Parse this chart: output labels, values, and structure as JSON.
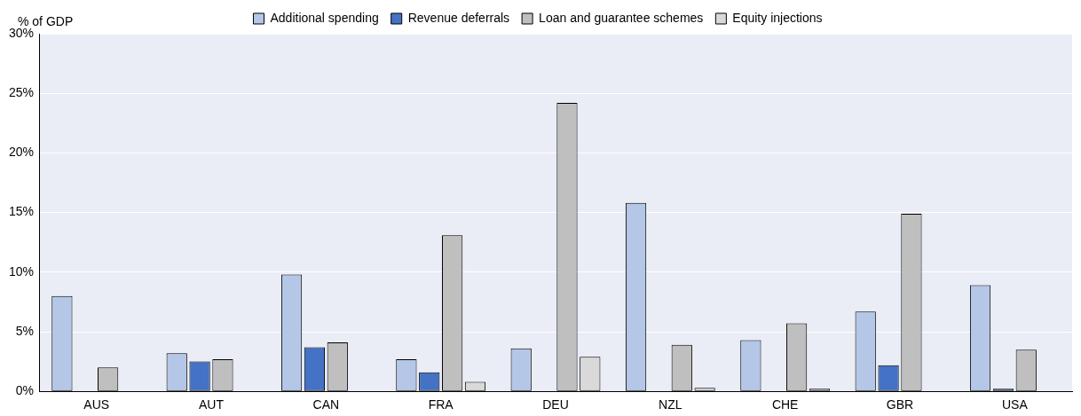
{
  "chart_data": {
    "type": "bar",
    "ylabel": "% of GDP",
    "categories": [
      "AUS",
      "AUT",
      "CAN",
      "FRA",
      "DEU",
      "NZL",
      "CHE",
      "GBR",
      "USA"
    ],
    "series": [
      {
        "name": "Additional spending",
        "color": "#b4c7e7",
        "values": [
          8.0,
          3.2,
          9.8,
          2.7,
          3.6,
          15.8,
          4.3,
          6.7,
          8.9
        ]
      },
      {
        "name": "Revenue deferrals",
        "color": "#4472c4",
        "values": [
          null,
          2.5,
          3.7,
          1.6,
          null,
          null,
          null,
          2.2,
          0.1
        ]
      },
      {
        "name": "Loan and guarantee schemes",
        "color": "#bfbfbf",
        "values": [
          2.0,
          2.7,
          4.1,
          13.1,
          24.2,
          3.9,
          5.7,
          14.9,
          3.5
        ]
      },
      {
        "name": "Equity injections",
        "color": "#d9d9d9",
        "values": [
          null,
          null,
          null,
          0.8,
          2.9,
          0.3,
          0.1,
          null,
          null
        ]
      }
    ],
    "ylim": [
      0,
      30
    ],
    "yticks": [
      {
        "value": 0,
        "label": "0%"
      },
      {
        "value": 5,
        "label": "5%"
      },
      {
        "value": 10,
        "label": "10%"
      },
      {
        "value": 15,
        "label": "15%"
      },
      {
        "value": 20,
        "label": "20%"
      },
      {
        "value": 25,
        "label": "25%"
      },
      {
        "value": 30,
        "label": "30%"
      }
    ],
    "grid": "y",
    "legend": "top"
  }
}
